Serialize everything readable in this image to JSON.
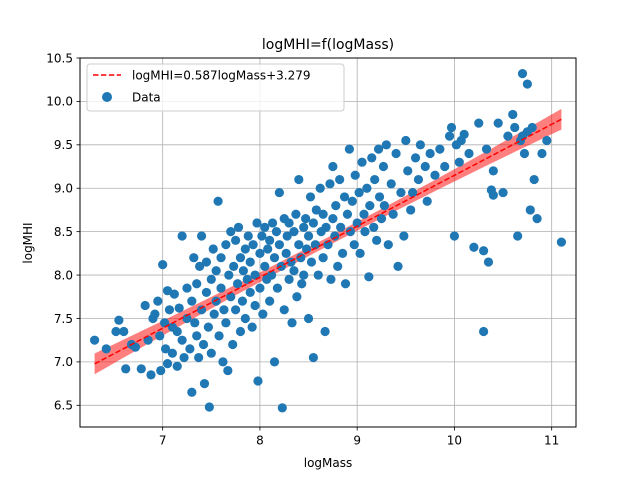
{
  "chart_data": {
    "type": "scatter",
    "title": "logMHI=f(logMass)",
    "xlabel": "logMass",
    "ylabel": "logMHI",
    "xlim": [
      6.15,
      11.25
    ],
    "ylim": [
      6.25,
      10.5
    ],
    "xticks": [
      7,
      8,
      9,
      10,
      11
    ],
    "yticks": [
      6.5,
      7.0,
      7.5,
      8.0,
      8.5,
      9.0,
      9.5,
      10.0,
      10.5
    ],
    "ytick_labels": [
      "6.5",
      "7.0",
      "7.5",
      "8.0",
      "8.5",
      "9.0",
      "9.5",
      "10.0",
      "10.5"
    ],
    "grid": true,
    "legend_position": "top-left",
    "fit": {
      "name": "logMHI=0.587logMass+3.279",
      "slope": 0.587,
      "intercept": 3.279,
      "x_range": [
        6.3,
        11.1
      ],
      "band_halfwidth_ends": 0.12,
      "band_halfwidth_center": 0.05,
      "color": "#ff0000",
      "band_color": "#ff0000"
    },
    "series": [
      {
        "name": "Data",
        "color": "#1f77b4",
        "points": [
          [
            6.3,
            7.25
          ],
          [
            6.42,
            7.15
          ],
          [
            6.52,
            7.35
          ],
          [
            6.55,
            7.48
          ],
          [
            6.6,
            7.35
          ],
          [
            6.62,
            6.92
          ],
          [
            6.68,
            7.2
          ],
          [
            6.72,
            7.17
          ],
          [
            6.78,
            6.92
          ],
          [
            6.82,
            7.65
          ],
          [
            6.85,
            7.25
          ],
          [
            6.88,
            6.85
          ],
          [
            6.9,
            7.5
          ],
          [
            6.92,
            7.55
          ],
          [
            6.95,
            7.7
          ],
          [
            6.97,
            7.3
          ],
          [
            6.98,
            6.9
          ],
          [
            7.0,
            8.12
          ],
          [
            7.02,
            7.45
          ],
          [
            7.03,
            7.15
          ],
          [
            7.05,
            6.98
          ],
          [
            7.05,
            7.82
          ],
          [
            7.07,
            7.6
          ],
          [
            7.1,
            7.4
          ],
          [
            7.1,
            7.1
          ],
          [
            7.12,
            7.78
          ],
          [
            7.15,
            6.95
          ],
          [
            7.15,
            7.35
          ],
          [
            7.17,
            7.62
          ],
          [
            7.2,
            8.45
          ],
          [
            7.2,
            7.25
          ],
          [
            7.22,
            7.05
          ],
          [
            7.25,
            7.5
          ],
          [
            7.25,
            7.85
          ],
          [
            7.28,
            7.15
          ],
          [
            7.3,
            6.65
          ],
          [
            7.3,
            7.7
          ],
          [
            7.32,
            8.2
          ],
          [
            7.33,
            7.45
          ],
          [
            7.35,
            7.9
          ],
          [
            7.35,
            7.3
          ],
          [
            7.37,
            7.05
          ],
          [
            7.38,
            8.1
          ],
          [
            7.4,
            7.6
          ],
          [
            7.4,
            8.45
          ],
          [
            7.42,
            7.2
          ],
          [
            7.43,
            6.75
          ],
          [
            7.45,
            8.15
          ],
          [
            7.45,
            7.8
          ],
          [
            7.47,
            7.4
          ],
          [
            7.48,
            6.48
          ],
          [
            7.5,
            7.95
          ],
          [
            7.5,
            7.1
          ],
          [
            7.52,
            8.3
          ],
          [
            7.53,
            7.55
          ],
          [
            7.55,
            8.05
          ],
          [
            7.55,
            7.7
          ],
          [
            7.57,
            8.85
          ],
          [
            7.58,
            7.3
          ],
          [
            7.6,
            7.85
          ],
          [
            7.6,
            8.2
          ],
          [
            7.62,
            7.0
          ],
          [
            7.63,
            7.6
          ],
          [
            7.65,
            8.35
          ],
          [
            7.65,
            7.45
          ],
          [
            7.67,
            6.9
          ],
          [
            7.68,
            8.0
          ],
          [
            7.7,
            7.75
          ],
          [
            7.7,
            8.5
          ],
          [
            7.72,
            7.2
          ],
          [
            7.73,
            8.1
          ],
          [
            7.75,
            7.6
          ],
          [
            7.75,
            8.4
          ],
          [
            7.77,
            7.9
          ],
          [
            7.78,
            8.55
          ],
          [
            7.8,
            7.35
          ],
          [
            7.8,
            8.2
          ],
          [
            7.82,
            7.7
          ],
          [
            7.83,
            8.05
          ],
          [
            7.85,
            8.3
          ],
          [
            7.85,
            7.5
          ],
          [
            7.87,
            7.95
          ],
          [
            7.88,
            8.45
          ],
          [
            7.9,
            7.8
          ],
          [
            7.9,
            8.15
          ],
          [
            7.92,
            7.4
          ],
          [
            7.93,
            8.35
          ],
          [
            7.95,
            8.0
          ],
          [
            7.95,
            7.65
          ],
          [
            7.97,
            8.6
          ],
          [
            7.98,
            6.78
          ],
          [
            8.0,
            8.25
          ],
          [
            8.0,
            7.85
          ],
          [
            8.02,
            8.45
          ],
          [
            8.03,
            7.55
          ],
          [
            8.05,
            8.1
          ],
          [
            8.05,
            8.55
          ],
          [
            8.07,
            7.95
          ],
          [
            8.08,
            8.3
          ],
          [
            8.1,
            8.4
          ],
          [
            8.1,
            7.7
          ],
          [
            8.12,
            8.0
          ],
          [
            8.13,
            8.6
          ],
          [
            8.15,
            8.2
          ],
          [
            8.15,
            7.0
          ],
          [
            8.17,
            8.5
          ],
          [
            8.18,
            7.85
          ],
          [
            8.2,
            8.35
          ],
          [
            8.2,
            8.95
          ],
          [
            8.22,
            8.1
          ],
          [
            8.23,
            6.47
          ],
          [
            8.25,
            8.65
          ],
          [
            8.25,
            7.6
          ],
          [
            8.27,
            8.25
          ],
          [
            8.28,
            8.45
          ],
          [
            8.3,
            7.95
          ],
          [
            8.3,
            8.6
          ],
          [
            8.32,
            8.15
          ],
          [
            8.33,
            7.45
          ],
          [
            8.35,
            8.5
          ],
          [
            8.35,
            8.05
          ],
          [
            8.37,
            8.7
          ],
          [
            8.38,
            7.75
          ],
          [
            8.4,
            8.35
          ],
          [
            8.4,
            9.1
          ],
          [
            8.42,
            8.2
          ],
          [
            8.43,
            7.9
          ],
          [
            8.45,
            8.55
          ],
          [
            8.45,
            8.0
          ],
          [
            8.47,
            8.65
          ],
          [
            8.48,
            8.3
          ],
          [
            8.5,
            7.5
          ],
          [
            8.5,
            8.45
          ],
          [
            8.52,
            8.9
          ],
          [
            8.53,
            8.15
          ],
          [
            8.55,
            8.6
          ],
          [
            8.55,
            7.05
          ],
          [
            8.57,
            8.35
          ],
          [
            8.58,
            8.75
          ],
          [
            8.6,
            8.0
          ],
          [
            8.62,
            9.0
          ],
          [
            8.63,
            8.5
          ],
          [
            8.65,
            8.2
          ],
          [
            8.65,
            8.7
          ],
          [
            8.67,
            7.35
          ],
          [
            8.68,
            8.55
          ],
          [
            8.7,
            8.35
          ],
          [
            8.72,
            9.05
          ],
          [
            8.73,
            7.95
          ],
          [
            8.75,
            8.65
          ],
          [
            8.75,
            9.25
          ],
          [
            8.77,
            8.45
          ],
          [
            8.78,
            8.8
          ],
          [
            8.8,
            8.1
          ],
          [
            8.82,
            9.1
          ],
          [
            8.83,
            8.55
          ],
          [
            8.85,
            8.25
          ],
          [
            8.87,
            8.9
          ],
          [
            8.88,
            7.9
          ],
          [
            8.9,
            8.7
          ],
          [
            8.92,
            9.45
          ],
          [
            8.93,
            8.5
          ],
          [
            8.95,
            8.85
          ],
          [
            8.97,
            8.35
          ],
          [
            8.98,
            9.15
          ],
          [
            9.0,
            8.6
          ],
          [
            9.02,
            8.95
          ],
          [
            9.03,
            8.25
          ],
          [
            9.05,
            9.3
          ],
          [
            9.07,
            8.7
          ],
          [
            9.08,
            8.5
          ],
          [
            9.1,
            9.0
          ],
          [
            9.12,
            7.98
          ],
          [
            9.13,
            8.8
          ],
          [
            9.15,
            9.35
          ],
          [
            9.17,
            8.55
          ],
          [
            9.18,
            9.1
          ],
          [
            9.2,
            8.4
          ],
          [
            9.22,
            9.45
          ],
          [
            9.23,
            8.9
          ],
          [
            9.25,
            8.65
          ],
          [
            9.27,
            9.25
          ],
          [
            9.28,
            8.8
          ],
          [
            9.3,
            9.5
          ],
          [
            9.32,
            8.35
          ],
          [
            9.35,
            9.05
          ],
          [
            9.37,
            8.7
          ],
          [
            9.4,
            9.4
          ],
          [
            9.42,
            8.1
          ],
          [
            9.45,
            8.95
          ],
          [
            9.48,
            8.45
          ],
          [
            9.5,
            9.55
          ],
          [
            9.52,
            9.2
          ],
          [
            9.55,
            8.75
          ],
          [
            9.57,
            8.95
          ],
          [
            9.6,
            9.35
          ],
          [
            9.63,
            9.1
          ],
          [
            9.65,
            9.5
          ],
          [
            9.7,
            9.25
          ],
          [
            9.72,
            8.85
          ],
          [
            9.75,
            9.4
          ],
          [
            9.8,
            9.15
          ],
          [
            9.85,
            9.45
          ],
          [
            9.9,
            9.25
          ],
          [
            9.95,
            9.6
          ],
          [
            9.97,
            9.7
          ],
          [
            10.0,
            8.45
          ],
          [
            10.02,
            9.5
          ],
          [
            10.05,
            9.3
          ],
          [
            10.07,
            9.55
          ],
          [
            10.1,
            9.62
          ],
          [
            10.15,
            9.4
          ],
          [
            10.2,
            8.32
          ],
          [
            10.25,
            9.75
          ],
          [
            10.3,
            8.28
          ],
          [
            10.33,
            9.45
          ],
          [
            10.35,
            8.15
          ],
          [
            10.38,
            8.98
          ],
          [
            10.4,
            9.2
          ],
          [
            10.45,
            9.75
          ],
          [
            10.5,
            8.95
          ],
          [
            10.55,
            9.6
          ],
          [
            10.6,
            9.85
          ],
          [
            10.62,
            9.7
          ],
          [
            10.65,
            8.45
          ],
          [
            10.68,
            9.55
          ],
          [
            10.7,
            10.32
          ],
          [
            10.72,
            9.4
          ],
          [
            10.75,
            9.65
          ],
          [
            10.78,
            8.75
          ],
          [
            10.8,
            9.7
          ],
          [
            10.82,
            9.1
          ],
          [
            10.85,
            8.65
          ],
          [
            10.9,
            9.4
          ],
          [
            10.95,
            9.55
          ],
          [
            11.1,
            8.38
          ],
          [
            10.3,
            7.35
          ],
          [
            10.75,
            10.2
          ],
          [
            10.7,
            9.6
          ],
          [
            10.4,
            8.92
          ]
        ]
      }
    ]
  }
}
